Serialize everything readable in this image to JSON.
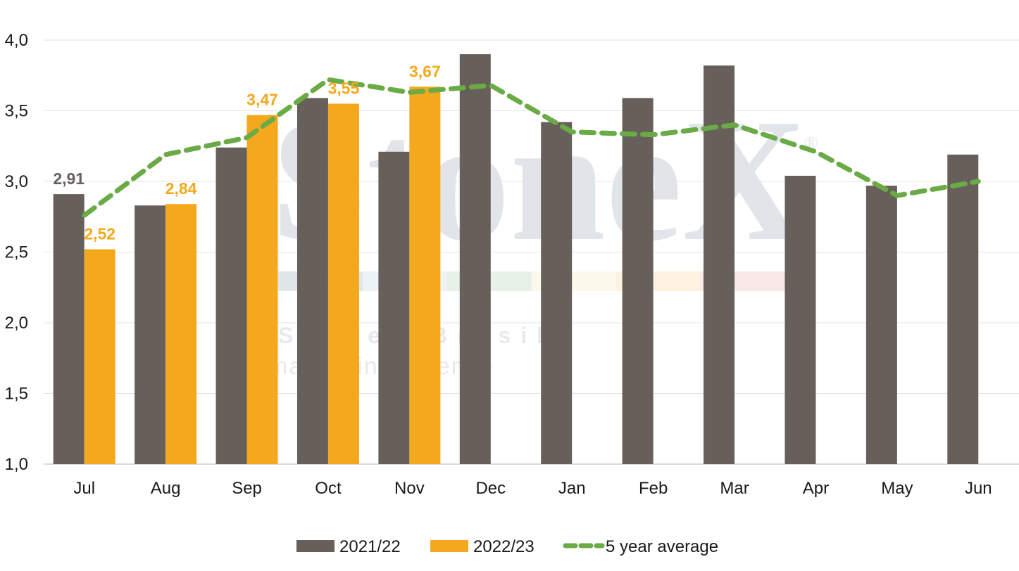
{
  "chart_data": {
    "type": "bar",
    "categories": [
      "Jul",
      "Aug",
      "Sep",
      "Oct",
      "Nov",
      "Dec",
      "Jan",
      "Feb",
      "Mar",
      "Apr",
      "May",
      "Jun"
    ],
    "ylim": [
      1.0,
      4.0
    ],
    "yticks": [
      "1,0",
      "1,5",
      "2,0",
      "2,5",
      "3,0",
      "3,5",
      "4,0"
    ],
    "grid": true,
    "legend_position": "bottom",
    "series": [
      {
        "name": "2021/22",
        "type": "bar",
        "color": "#67605a",
        "values": [
          2.91,
          2.83,
          3.24,
          3.59,
          3.21,
          3.9,
          3.42,
          3.59,
          3.82,
          3.04,
          2.97,
          3.19
        ],
        "labels": [
          "2,91",
          null,
          null,
          null,
          null,
          null,
          null,
          null,
          null,
          null,
          null,
          null
        ]
      },
      {
        "name": "2022/23",
        "type": "bar",
        "color": "#f4a81d",
        "values": [
          2.52,
          2.84,
          3.47,
          3.55,
          3.67,
          null,
          null,
          null,
          null,
          null,
          null,
          null
        ],
        "labels": [
          "2,52",
          "2,84",
          "3,47",
          "3,55",
          "3,67",
          null,
          null,
          null,
          null,
          null,
          null,
          null
        ]
      },
      {
        "name": "5 year average",
        "type": "line",
        "style": "dashed",
        "color": "#6aab46",
        "values": [
          2.76,
          3.19,
          3.31,
          3.72,
          3.63,
          3.68,
          3.35,
          3.33,
          3.4,
          3.21,
          2.9,
          3.0
        ]
      }
    ]
  },
  "watermark": {
    "brand": "StoneX",
    "registered": "®",
    "subtitle": "StoneX Brasil",
    "tagline": "market intelligence",
    "colors": [
      "#c9d2dc",
      "#dfe8f2",
      "#d5e6d5",
      "#fbf3dc",
      "#fde8c8",
      "#f6d6d6"
    ]
  }
}
